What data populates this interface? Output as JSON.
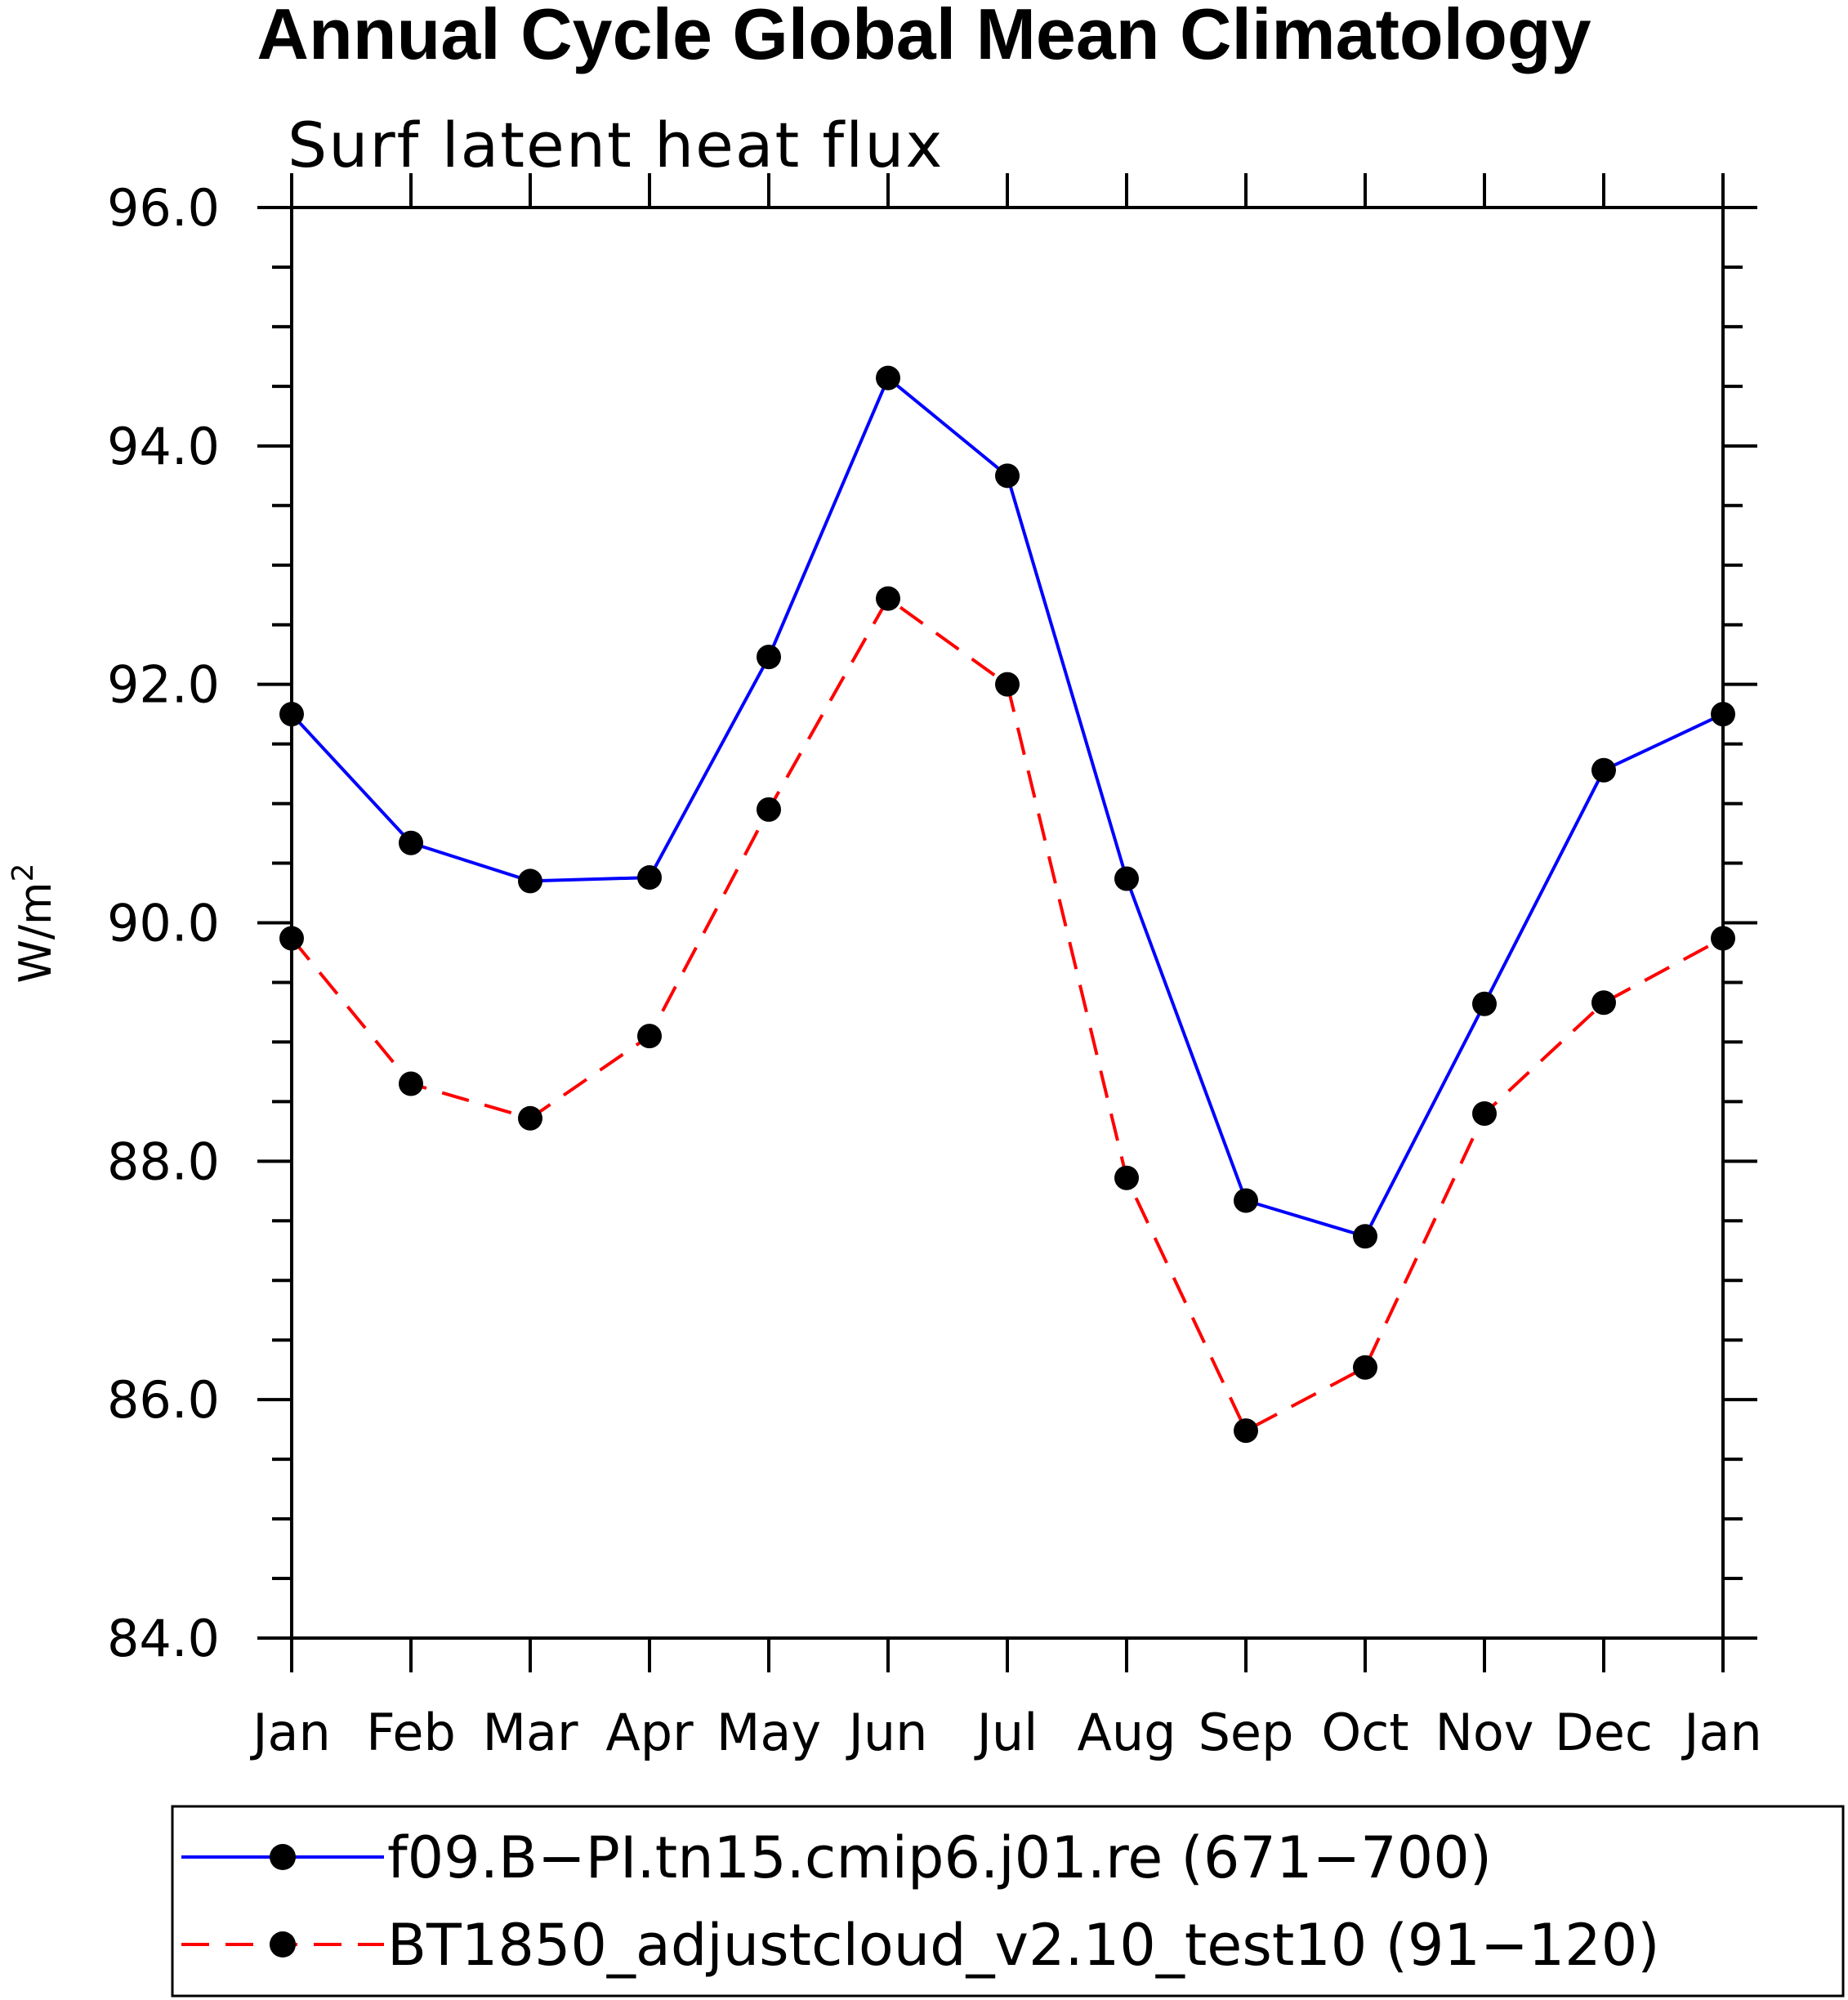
{
  "chart_data": {
    "type": "line",
    "title": "Annual Cycle Global Mean Climatology",
    "subtitle": "Surf latent heat flux",
    "xlabel": "",
    "ylabel": "W/m",
    "ylabel_superscript": "2",
    "ylim": [
      84.0,
      96.0
    ],
    "yticks": [
      "84.0",
      "86.0",
      "88.0",
      "90.0",
      "92.0",
      "94.0",
      "96.0"
    ],
    "categories": [
      "Jan",
      "Feb",
      "Mar",
      "Apr",
      "May",
      "Jun",
      "Jul",
      "Aug",
      "Sep",
      "Oct",
      "Nov",
      "Dec",
      "Jan"
    ],
    "grid": false,
    "legend_position": "bottom",
    "series": [
      {
        "name": "f09.B−PI.tn15.cmip6.j01.re (671−700)",
        "color": "#0000ff",
        "line_style": "solid",
        "marker": "filled-circle",
        "values": [
          91.75,
          90.67,
          90.35,
          90.38,
          92.23,
          94.57,
          93.75,
          90.37,
          87.67,
          87.37,
          89.32,
          91.28,
          91.75
        ]
      },
      {
        "name": "BT1850_adjustcloud_v2.10_test10 (91−120)",
        "color": "#ff0000",
        "line_style": "dashed",
        "marker": "filled-circle",
        "values": [
          89.87,
          88.65,
          88.36,
          89.05,
          90.95,
          92.72,
          92.0,
          87.86,
          85.74,
          86.27,
          88.4,
          89.33,
          89.87
        ]
      }
    ]
  }
}
